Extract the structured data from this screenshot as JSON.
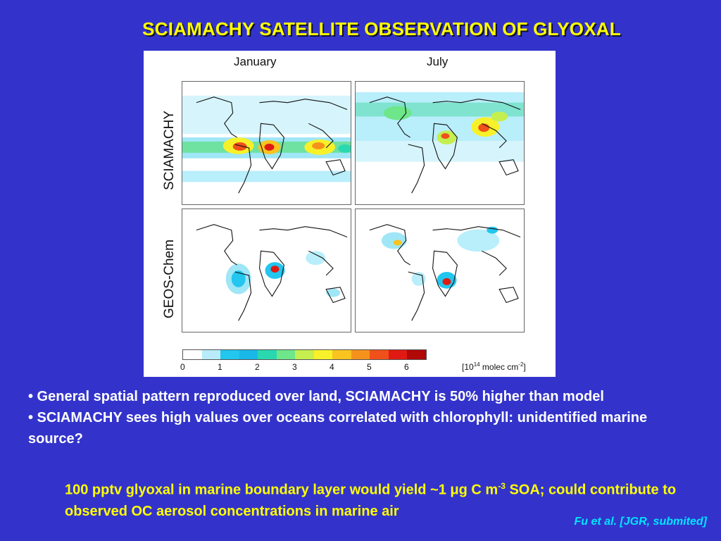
{
  "slide": {
    "title": "SCIAMACHY SATELLITE OBSERVATION OF GLYOXAL"
  },
  "figure": {
    "columns": [
      "January",
      "July"
    ],
    "rows": [
      "SCIAMACHY",
      "GEOS-Chem"
    ],
    "colorbar": {
      "colors": [
        "#ffffff",
        "#b8ecfb",
        "#22c6ee",
        "#19b8e8",
        "#2ad8b0",
        "#6ee68a",
        "#c4ef4f",
        "#f8f12a",
        "#f9c320",
        "#f5921c",
        "#f0501a",
        "#e01a12",
        "#b10808"
      ],
      "ticks": [
        "0",
        "1",
        "2",
        "3",
        "4",
        "5",
        "6"
      ],
      "unit_prefix": "[10",
      "unit_exp": "14",
      "unit_mid": " molec cm",
      "unit_exp2": "-2",
      "unit_suffix": "]"
    }
  },
  "bullets": {
    "b1": "• General spatial pattern reproduced over land, SCIAMACHY is 50% higher than model",
    "b2": "• SCIAMACHY sees high values over oceans correlated with chlorophyll: unidentified marine source?"
  },
  "note": {
    "part1": "100 pptv glyoxal in marine boundary layer would yield ~1 ",
    "mu": "μ",
    "part2": "g C m",
    "sup": "-3",
    "part3": " SOA; could contribute to observed OC aerosol concentrations in marine air"
  },
  "citation": "Fu et al. [JGR, submited]"
}
